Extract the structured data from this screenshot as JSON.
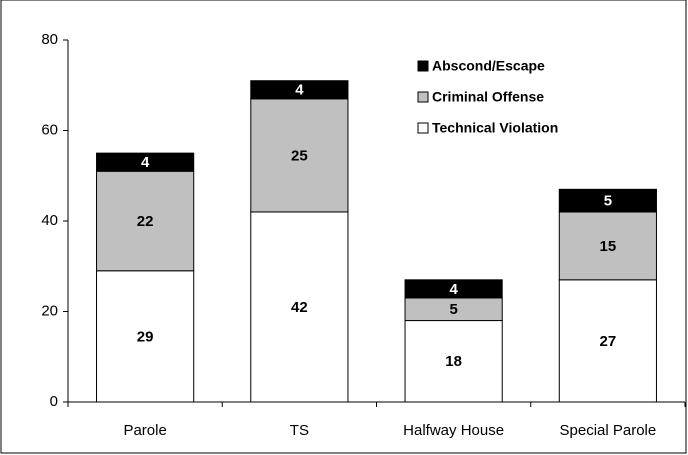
{
  "chart_data": {
    "type": "stacked_bar",
    "categories": [
      "Parole",
      "TS",
      "Halfway House",
      "Special Parole"
    ],
    "series": [
      {
        "name": "Technical Violation",
        "color": "#ffffff",
        "values": [
          29,
          42,
          18,
          27
        ]
      },
      {
        "name": "Criminal Offense",
        "color": "#c0c0c0",
        "values": [
          22,
          25,
          5,
          15
        ]
      },
      {
        "name": "Abscond/Escape",
        "color": "#000000",
        "values": [
          4,
          4,
          4,
          5
        ]
      }
    ],
    "ylim": [
      0,
      80
    ],
    "yticks": [
      0,
      20,
      40,
      60,
      80
    ],
    "grid": false,
    "legend": "top-right"
  }
}
